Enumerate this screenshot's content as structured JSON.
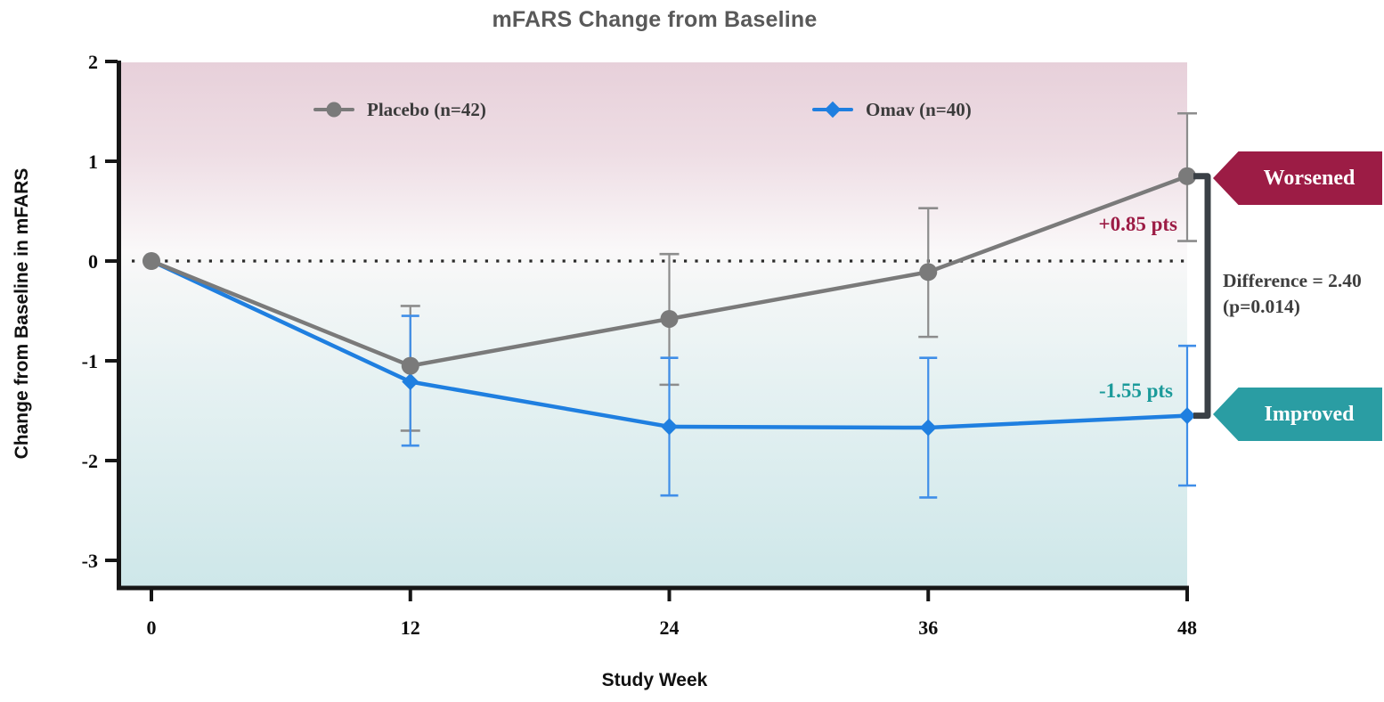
{
  "chart_data": {
    "type": "line",
    "title": "mFARS Change from Baseline",
    "xlabel": "Study Week",
    "ylabel": "Change from Baseline in mFARS",
    "x": [
      0,
      12,
      24,
      36,
      48
    ],
    "x_tick_labels": [
      "0",
      "12",
      "24",
      "36",
      "48"
    ],
    "y_ticks": [
      2,
      1,
      0,
      -1,
      -2,
      -3
    ],
    "y_tick_labels": [
      "2",
      "1",
      "0",
      "-1",
      "-2",
      "-3"
    ],
    "ylim": [
      -3.25,
      2
    ],
    "grid": false,
    "zero_baseline": true,
    "legend_position": "top-inside",
    "series": [
      {
        "name": "Placebo (n=42)",
        "marker": "circle",
        "color": "#7a7a7a",
        "error_color": "#8c8c8c",
        "values": [
          0,
          -1.05,
          -0.58,
          -0.11,
          0.85
        ],
        "ci_low": [
          null,
          -1.7,
          -1.24,
          -0.76,
          0.2
        ],
        "ci_high": [
          null,
          -0.45,
          0.07,
          0.53,
          1.48
        ]
      },
      {
        "name": "Omav (n=40)",
        "marker": "diamond",
        "color": "#1f7fe0",
        "error_color": "#3f8ee8",
        "values": [
          0,
          -1.21,
          -1.66,
          -1.67,
          -1.55
        ],
        "ci_low": [
          null,
          -1.85,
          -2.35,
          -2.37,
          -2.25
        ],
        "ci_high": [
          null,
          -0.55,
          -0.97,
          -0.97,
          -0.85
        ]
      }
    ],
    "annotations": {
      "placebo_end_label": "+0.85 pts",
      "omav_end_label": "-1.55 pts",
      "difference_line1": "Difference = 2.40",
      "difference_line2": "(p=0.014)"
    },
    "badges": {
      "worsened": "Worsened",
      "improved": "Improved"
    },
    "colors": {
      "worsened": "#9c1c45",
      "improved": "#2a9da3",
      "worsened_text": "#9c1c45",
      "improved_text": "#1b9a9a",
      "difference_text": "#3e3e3e",
      "bracket": "#3a4046",
      "title": "#595959",
      "axis": "#161616",
      "bg_top_pink": "#e7d0da",
      "bg_mid_white": "#faf8f9",
      "bg_bottom_teal": "#cee7e9"
    }
  }
}
